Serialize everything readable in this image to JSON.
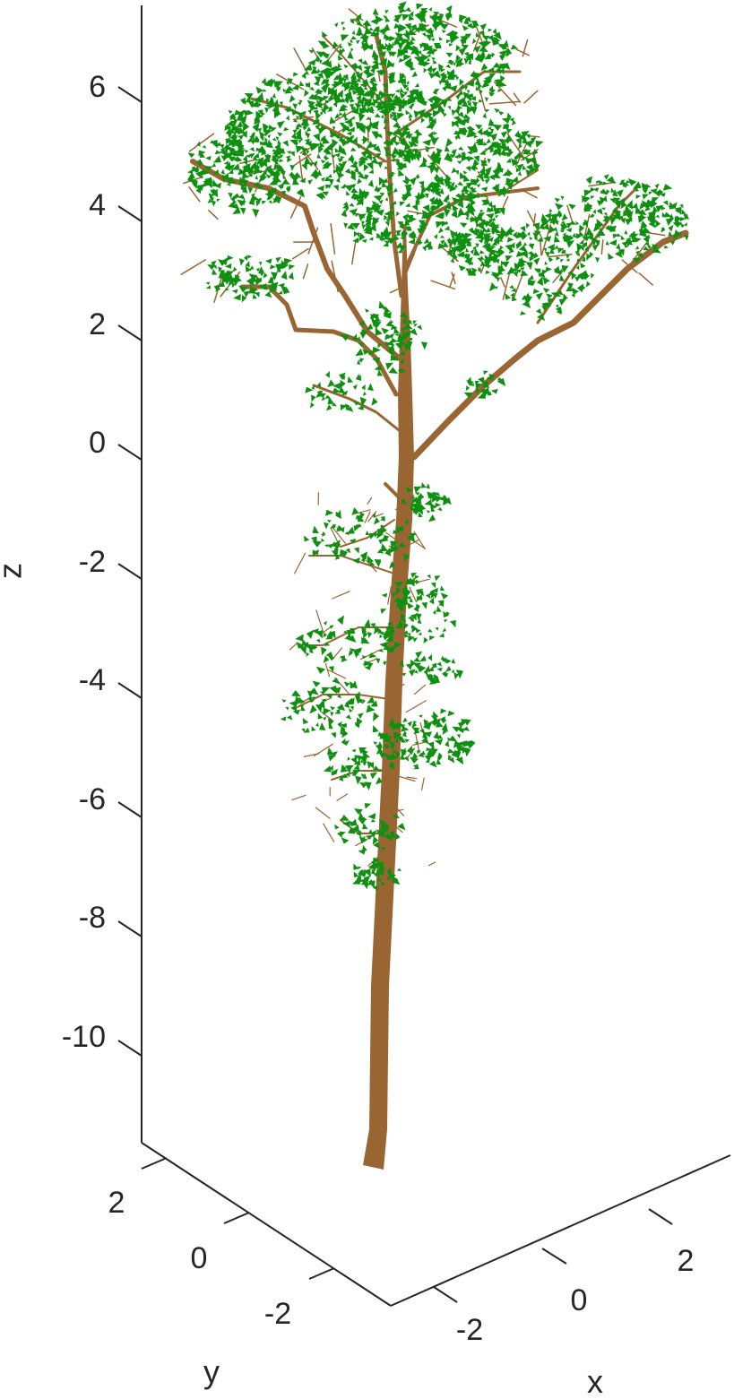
{
  "figure": {
    "colors": {
      "background": "#ffffff",
      "axis": "#262626",
      "bark": "#996633",
      "leaf": "#109010"
    },
    "axes": {
      "z": {
        "label": "z",
        "ticks": [
          {
            "value": 6,
            "label": "6"
          },
          {
            "value": 4,
            "label": "4"
          },
          {
            "value": 2,
            "label": "2"
          },
          {
            "value": 0,
            "label": "0"
          },
          {
            "value": -2,
            "label": "-2"
          },
          {
            "value": -4,
            "label": "-4"
          },
          {
            "value": -6,
            "label": "-6"
          },
          {
            "value": -8,
            "label": "-8"
          },
          {
            "value": -10,
            "label": "-10"
          }
        ]
      },
      "y": {
        "label": "y",
        "ticks": [
          {
            "value": 2,
            "label": "2"
          },
          {
            "value": 0,
            "label": "0"
          },
          {
            "value": -2,
            "label": "-2"
          }
        ]
      },
      "x": {
        "label": "x",
        "ticks": [
          {
            "value": -2,
            "label": "-2"
          },
          {
            "value": 0,
            "label": "0"
          },
          {
            "value": 2,
            "label": "2"
          }
        ]
      }
    }
  }
}
